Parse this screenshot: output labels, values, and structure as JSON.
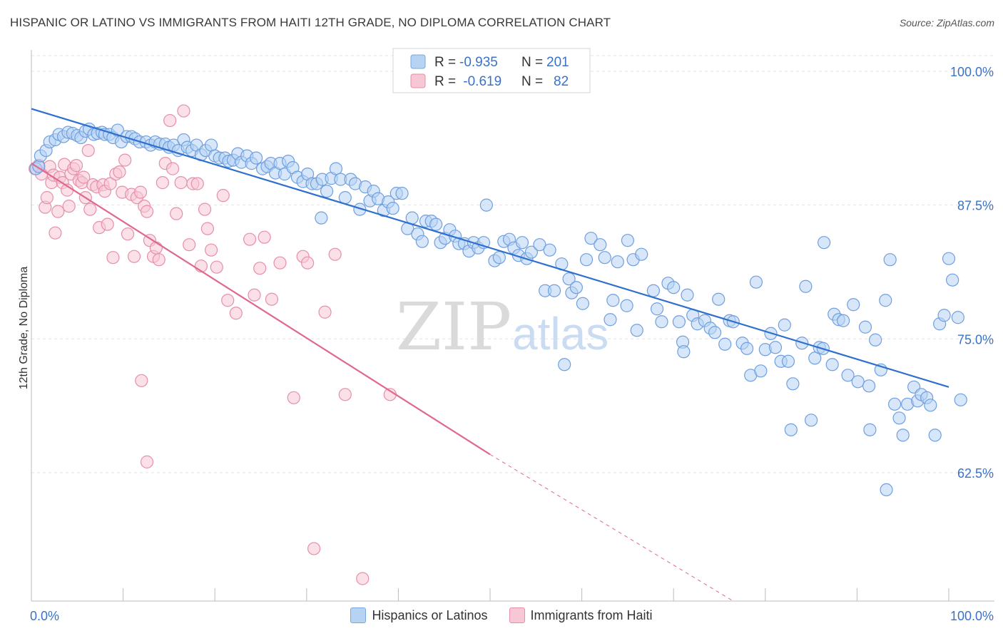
{
  "header": {
    "title": "HISPANIC OR LATINO VS IMMIGRANTS FROM HAITI 12TH GRADE, NO DIPLOMA CORRELATION CHART",
    "source": "Source: ZipAtlas.com"
  },
  "watermark": {
    "zip": "ZIP",
    "atlas": "atlas"
  },
  "legend_top": {
    "rows": [
      {
        "r_label": "R = ",
        "r_value": "-0.935",
        "n_label": "N = ",
        "n_value": "201"
      },
      {
        "r_label": "R = ",
        "r_value": " -0.619",
        "n_label": "N = ",
        "n_value": "82"
      }
    ]
  },
  "legend_bottom": {
    "items": [
      {
        "label": "Hispanics or Latinos"
      },
      {
        "label": "Immigrants from Haiti"
      }
    ]
  },
  "colors": {
    "blue_fill": "#b7d3f4",
    "blue_stroke": "#6f9fe0",
    "blue_line": "#2f6fce",
    "pink_fill": "#f7c7d6",
    "pink_stroke": "#e68fab",
    "pink_line": "#e0688f",
    "tick_label": "#3a72c9",
    "grid": "#e3e3e3"
  },
  "chart_data": {
    "type": "scatter",
    "title": "HISPANIC OR LATINO VS IMMIGRANTS FROM HAITI 12TH GRADE, NO DIPLOMA CORRELATION CHART",
    "xlabel": "",
    "ylabel": "12th Grade, No Diploma",
    "xlim": [
      0,
      100
    ],
    "ylim": [
      50.5,
      102
    ],
    "x_tick_labels": [
      "0.0%",
      "100.0%"
    ],
    "y_ticks": [
      62.5,
      75.0,
      87.5,
      100.0
    ],
    "y_tick_labels": [
      "62.5%",
      "75.0%",
      "87.5%",
      "100.0%"
    ],
    "grid": true,
    "legend_placement": "top-center and bottom",
    "series": [
      {
        "name": "Hispanics or Latinos",
        "R": -0.935,
        "N": 201,
        "trend": {
          "x": [
            0,
            100
          ],
          "y": [
            96.5,
            70.5
          ]
        },
        "points": [
          [
            0.5,
            90.9
          ],
          [
            0.8,
            91.1
          ],
          [
            1,
            92.1
          ],
          [
            1.6,
            92.6
          ],
          [
            2,
            93.4
          ],
          [
            2.6,
            93.6
          ],
          [
            3,
            94.1
          ],
          [
            3.5,
            93.9
          ],
          [
            4,
            94.3
          ],
          [
            4.5,
            94.2
          ],
          [
            5,
            94
          ],
          [
            5.4,
            93.8
          ],
          [
            5.9,
            94.4
          ],
          [
            6.3,
            94.6
          ],
          [
            6.8,
            94.1
          ],
          [
            7.2,
            94.2
          ],
          [
            7.7,
            94.3
          ],
          [
            8,
            94.1
          ],
          [
            8.5,
            94.1
          ],
          [
            8.9,
            93.8
          ],
          [
            9.4,
            94.5
          ],
          [
            9.8,
            93.4
          ],
          [
            10.4,
            93.9
          ],
          [
            10.9,
            93.9
          ],
          [
            11.3,
            93.7
          ],
          [
            11.8,
            93.4
          ],
          [
            12.5,
            93.4
          ],
          [
            13,
            93.1
          ],
          [
            13.5,
            93.4
          ],
          [
            14,
            93.2
          ],
          [
            14.6,
            93.2
          ],
          [
            15,
            92.9
          ],
          [
            15.5,
            93.1
          ],
          [
            16,
            92.6
          ],
          [
            16.6,
            93.6
          ],
          [
            17,
            92.9
          ],
          [
            17.5,
            92.6
          ],
          [
            18,
            93.1
          ],
          [
            18.5,
            92.2
          ],
          [
            19,
            92.6
          ],
          [
            19.6,
            93.1
          ],
          [
            20,
            92.1
          ],
          [
            20.5,
            91.9
          ],
          [
            21.1,
            91.9
          ],
          [
            21.5,
            91.6
          ],
          [
            22,
            91.7
          ],
          [
            22.5,
            92.3
          ],
          [
            22.9,
            91.5
          ],
          [
            23.5,
            92.1
          ],
          [
            24,
            91.4
          ],
          [
            24.5,
            91.9
          ],
          [
            25.2,
            90.9
          ],
          [
            25.7,
            91.1
          ],
          [
            26.1,
            91.4
          ],
          [
            26.6,
            90.5
          ],
          [
            27.1,
            91.4
          ],
          [
            27.6,
            90.4
          ],
          [
            28,
            91.6
          ],
          [
            28.5,
            91
          ],
          [
            29,
            90.1
          ],
          [
            29.6,
            89.7
          ],
          [
            30.1,
            90.4
          ],
          [
            30.6,
            89.5
          ],
          [
            31.1,
            89.5
          ],
          [
            31.7,
            89.9
          ],
          [
            32.2,
            88.8
          ],
          [
            32.7,
            90
          ],
          [
            33.2,
            90.9
          ],
          [
            33.7,
            89.9
          ],
          [
            34.2,
            88.2
          ],
          [
            34.8,
            89.9
          ],
          [
            35.3,
            89.5
          ],
          [
            35.8,
            87.1
          ],
          [
            36.4,
            89.2
          ],
          [
            36.9,
            87.9
          ],
          [
            37.3,
            88.8
          ],
          [
            37.8,
            88.1
          ],
          [
            38.4,
            87
          ],
          [
            38.9,
            87.8
          ],
          [
            39.4,
            87.2
          ],
          [
            39.8,
            88.6
          ],
          [
            40.4,
            88.6
          ],
          [
            41,
            85.3
          ],
          [
            41.5,
            86.3
          ],
          [
            42.1,
            84.8
          ],
          [
            42.6,
            84.1
          ],
          [
            43,
            86
          ],
          [
            43.6,
            86
          ],
          [
            44.1,
            85.7
          ],
          [
            44.6,
            84
          ],
          [
            45.1,
            84.4
          ],
          [
            45.6,
            85.2
          ],
          [
            46.2,
            84.6
          ],
          [
            46.6,
            83.9
          ],
          [
            47.2,
            83.9
          ],
          [
            47.7,
            83.2
          ],
          [
            48.2,
            84
          ],
          [
            48.7,
            83.5
          ],
          [
            49.3,
            84
          ],
          [
            49.6,
            87.5
          ],
          [
            50.5,
            82.3
          ],
          [
            51,
            82.6
          ],
          [
            51.5,
            84.1
          ],
          [
            52.1,
            84.3
          ],
          [
            52.6,
            83.5
          ],
          [
            53.1,
            82.8
          ],
          [
            53.5,
            84
          ],
          [
            54,
            82.5
          ],
          [
            54.5,
            83.1
          ],
          [
            55.4,
            83.8
          ],
          [
            56,
            79.5
          ],
          [
            56.5,
            83.3
          ],
          [
            57,
            79.5
          ],
          [
            57.8,
            82
          ],
          [
            58.6,
            80.6
          ],
          [
            58.9,
            79.3
          ],
          [
            59.4,
            79.8
          ],
          [
            60.1,
            78.3
          ],
          [
            60.5,
            82.4
          ],
          [
            61,
            84.4
          ],
          [
            62,
            83.8
          ],
          [
            62.5,
            82.6
          ],
          [
            63.4,
            78.6
          ],
          [
            63.9,
            82.2
          ],
          [
            64.9,
            78.1
          ],
          [
            65,
            84.2
          ],
          [
            65.6,
            82.4
          ],
          [
            66,
            75.8
          ],
          [
            66.5,
            82.9
          ],
          [
            67.8,
            79.5
          ],
          [
            68.2,
            77.8
          ],
          [
            68.7,
            76.6
          ],
          [
            69.4,
            80.2
          ],
          [
            70,
            79.8
          ],
          [
            70.6,
            76.6
          ],
          [
            71,
            74.7
          ],
          [
            71.1,
            73.8
          ],
          [
            71.5,
            79.1
          ],
          [
            72.1,
            77.2
          ],
          [
            72.6,
            76.4
          ],
          [
            73.4,
            76.7
          ],
          [
            74,
            76
          ],
          [
            74.5,
            75.6
          ],
          [
            74.9,
            78.7
          ],
          [
            75.6,
            74.5
          ],
          [
            76.1,
            76.7
          ],
          [
            76.5,
            76.6
          ],
          [
            77.5,
            74.6
          ],
          [
            78,
            74.1
          ],
          [
            78.4,
            71.6
          ],
          [
            79,
            80.3
          ],
          [
            79.5,
            72
          ],
          [
            80,
            74
          ],
          [
            80.6,
            75.5
          ],
          [
            81.1,
            74.2
          ],
          [
            81.7,
            72.9
          ],
          [
            82.1,
            76.3
          ],
          [
            82.5,
            72.9
          ],
          [
            82.8,
            66.5
          ],
          [
            83,
            70.8
          ],
          [
            84,
            74.6
          ],
          [
            84.4,
            79.9
          ],
          [
            85,
            67.4
          ],
          [
            85.4,
            73.2
          ],
          [
            85.9,
            74.2
          ],
          [
            86.3,
            74.1
          ],
          [
            86.4,
            84
          ],
          [
            87.3,
            72.6
          ],
          [
            87.5,
            77.3
          ],
          [
            88,
            76.8
          ],
          [
            88.5,
            76.7
          ],
          [
            89,
            71.6
          ],
          [
            89.6,
            78.2
          ],
          [
            90.1,
            71
          ],
          [
            90.9,
            76.1
          ],
          [
            91.3,
            70.6
          ],
          [
            91.4,
            66.5
          ],
          [
            92,
            74.9
          ],
          [
            92.6,
            72.1
          ],
          [
            93.1,
            78.6
          ],
          [
            93.6,
            82.4
          ],
          [
            94.1,
            68.9
          ],
          [
            94.6,
            67.6
          ],
          [
            95,
            66
          ],
          [
            95.5,
            68.9
          ],
          [
            96.2,
            70.5
          ],
          [
            96.6,
            69.2
          ],
          [
            97,
            69.8
          ],
          [
            97.6,
            69.5
          ],
          [
            98,
            68.8
          ],
          [
            98.5,
            66
          ],
          [
            99,
            76.4
          ],
          [
            99.5,
            77.2
          ],
          [
            100,
            82.5
          ],
          [
            100.4,
            80.5
          ],
          [
            101,
            77
          ],
          [
            101.3,
            69.3
          ],
          [
            93.2,
            60.9
          ],
          [
            63.1,
            76.8
          ],
          [
            58.1,
            72.6
          ],
          [
            31.6,
            86.3
          ]
        ]
      },
      {
        "name": "Immigrants from Haiti",
        "R": -0.619,
        "N": 82,
        "trend": {
          "x": [
            0,
            50
          ],
          "y": [
            91.4,
            64.2
          ]
        },
        "trend_dashed": {
          "x": [
            50,
            76.5
          ],
          "y": [
            64.2,
            50.5
          ]
        },
        "points": [
          [
            0.4,
            90.9
          ],
          [
            0.8,
            91.2
          ],
          [
            1.1,
            90.4
          ],
          [
            1.5,
            87.3
          ],
          [
            1.7,
            88.2
          ],
          [
            2,
            91.1
          ],
          [
            2.2,
            89.6
          ],
          [
            2.4,
            90.3
          ],
          [
            2.6,
            84.9
          ],
          [
            2.9,
            86.9
          ],
          [
            3.1,
            90.1
          ],
          [
            3.4,
            89.6
          ],
          [
            3.6,
            91.3
          ],
          [
            3.9,
            88.9
          ],
          [
            4.1,
            87.4
          ],
          [
            4.3,
            90.4
          ],
          [
            4.6,
            90.9
          ],
          [
            4.9,
            91.2
          ],
          [
            5.2,
            89.8
          ],
          [
            5.5,
            89.6
          ],
          [
            5.7,
            90.1
          ],
          [
            5.9,
            88.2
          ],
          [
            6.2,
            92.6
          ],
          [
            6.4,
            87.1
          ],
          [
            6.7,
            89.4
          ],
          [
            7.1,
            89.2
          ],
          [
            7.4,
            85.4
          ],
          [
            7.8,
            89.4
          ],
          [
            8,
            88.8
          ],
          [
            8.3,
            85.7
          ],
          [
            8.6,
            89.5
          ],
          [
            8.9,
            82.6
          ],
          [
            9.2,
            90.4
          ],
          [
            9.6,
            90.6
          ],
          [
            9.9,
            88.7
          ],
          [
            10.2,
            91.7
          ],
          [
            10.5,
            84.8
          ],
          [
            10.9,
            88.5
          ],
          [
            11.2,
            82.7
          ],
          [
            11.5,
            88.2
          ],
          [
            11.9,
            88.7
          ],
          [
            12.3,
            87.4
          ],
          [
            12.6,
            86.9
          ],
          [
            12.9,
            84.2
          ],
          [
            13.3,
            82.7
          ],
          [
            13.6,
            83.5
          ],
          [
            13.9,
            82.4
          ],
          [
            14.3,
            89.6
          ],
          [
            14.6,
            91.4
          ],
          [
            15.1,
            95.4
          ],
          [
            15.4,
            90.9
          ],
          [
            15.8,
            86.7
          ],
          [
            16.3,
            89.6
          ],
          [
            16.6,
            96.3
          ],
          [
            17.2,
            83.8
          ],
          [
            17.6,
            89.5
          ],
          [
            18.1,
            89.5
          ],
          [
            18.5,
            81.8
          ],
          [
            18.9,
            87.1
          ],
          [
            19.2,
            85.3
          ],
          [
            19.6,
            83.3
          ],
          [
            20.2,
            81.7
          ],
          [
            20.9,
            88.4
          ],
          [
            21.4,
            78.6
          ],
          [
            22.3,
            77.4
          ],
          [
            23.8,
            84.3
          ],
          [
            24.3,
            79.1
          ],
          [
            24.9,
            81.6
          ],
          [
            25.4,
            84.5
          ],
          [
            26.2,
            78.7
          ],
          [
            27.1,
            82.1
          ],
          [
            28.6,
            69.5
          ],
          [
            29.6,
            82.7
          ],
          [
            30.1,
            82.1
          ],
          [
            30.8,
            55.4
          ],
          [
            32,
            77.5
          ],
          [
            33.1,
            82.9
          ],
          [
            34.2,
            69.8
          ],
          [
            36.1,
            52.6
          ],
          [
            39.1,
            69.8
          ],
          [
            12,
            71.1
          ],
          [
            12.6,
            63.5
          ]
        ]
      }
    ]
  }
}
